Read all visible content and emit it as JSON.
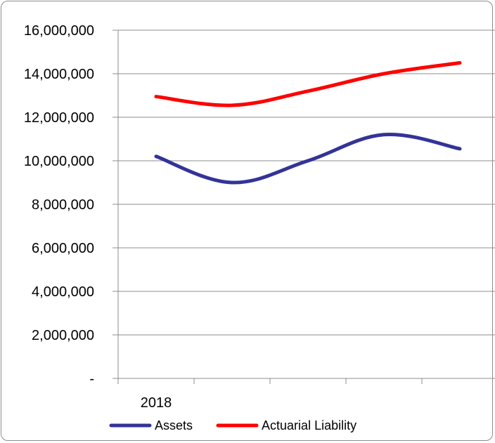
{
  "chart_data": {
    "type": "line",
    "title": "",
    "xlabel": "",
    "ylabel": "",
    "x": [
      0,
      1,
      2,
      3,
      4
    ],
    "x_tick_labels": [
      "2018"
    ],
    "ylim": [
      0,
      16000000
    ],
    "y_ticks": [
      0,
      2000000,
      4000000,
      6000000,
      8000000,
      10000000,
      12000000,
      14000000,
      16000000
    ],
    "y_tick_labels": [
      "-",
      "2,000,000",
      "4,000,000",
      "6,000,000",
      "8,000,000",
      "10,000,000",
      "12,000,000",
      "14,000,000",
      "16,000,000"
    ],
    "grid": true,
    "legend_position": "bottom",
    "series": [
      {
        "name": "Assets",
        "color": "#333399",
        "values": [
          10200000,
          9000000,
          10000000,
          11200000,
          10550000
        ]
      },
      {
        "name": "Actuarial Liability",
        "color": "#ff0000",
        "values": [
          12950000,
          12550000,
          13200000,
          14000000,
          14500000
        ]
      }
    ]
  }
}
